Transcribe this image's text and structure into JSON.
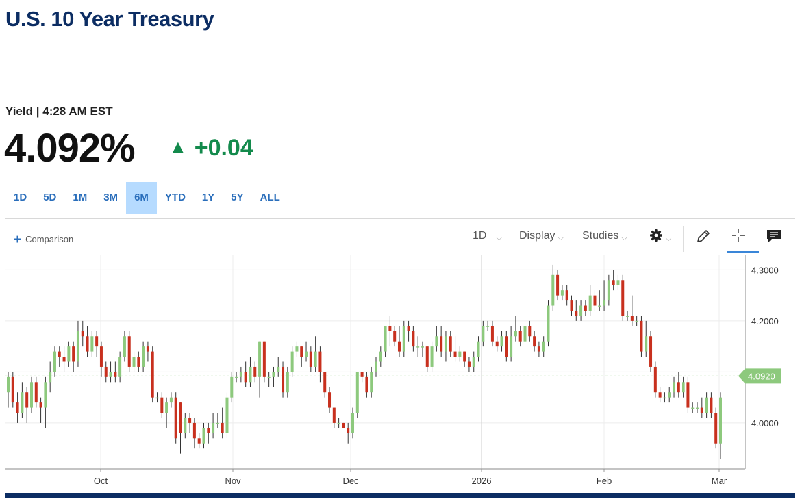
{
  "header": {
    "title": "U.S. 10 Year Treasury"
  },
  "quote": {
    "label": "Yield",
    "separator": "|",
    "time": "4:28 AM EST",
    "price": "4.092%",
    "change": "+0.04",
    "up_color": "#138a4c"
  },
  "range_tabs": {
    "items": [
      {
        "label": "1D"
      },
      {
        "label": "5D"
      },
      {
        "label": "1M"
      },
      {
        "label": "3M"
      },
      {
        "label": "6M",
        "active": true
      },
      {
        "label": "YTD"
      },
      {
        "label": "1Y"
      },
      {
        "label": "5Y"
      },
      {
        "label": "ALL"
      }
    ]
  },
  "toolbar": {
    "comparison_label": "Comparison",
    "interval_label": "1D",
    "display_label": "Display",
    "studies_label": "Studies",
    "icons": [
      "gear-icon",
      "pencil-icon",
      "crosshair-icon",
      "comment-icon"
    ]
  },
  "chart_data": {
    "type": "candlestick",
    "title": "",
    "xlabel": "",
    "ylabel": "",
    "x_ticks": [
      "Oct",
      "Nov",
      "Dec",
      "2026",
      "Feb",
      "Mar"
    ],
    "y_ticks": [
      "4.0000",
      "4.1000",
      "4.2000",
      "4.3000"
    ],
    "ylim": [
      3.91,
      4.33
    ],
    "current_value": "4.0920",
    "current_line": 4.092,
    "gridlines": true,
    "colors": {
      "up": "#8dc97d",
      "down": "#c8301e",
      "current": "#8dc97d"
    },
    "candles": [
      [
        4.06,
        4.09,
        4.03,
        4.1
      ],
      [
        4.09,
        4.04,
        4.03,
        4.1
      ],
      [
        4.04,
        4.02,
        4.0,
        4.06
      ],
      [
        4.02,
        4.06,
        4.01,
        4.08
      ],
      [
        4.06,
        4.03,
        4.0,
        4.07
      ],
      [
        4.03,
        4.08,
        4.02,
        4.09
      ],
      [
        4.08,
        4.04,
        4.03,
        4.09
      ],
      [
        4.04,
        4.03,
        4.0,
        4.05
      ],
      [
        4.03,
        4.08,
        3.99,
        4.09
      ],
      [
        4.08,
        4.1,
        4.06,
        4.12
      ],
      [
        4.1,
        4.14,
        4.09,
        4.15
      ],
      [
        4.14,
        4.13,
        4.11,
        4.15
      ],
      [
        4.13,
        4.12,
        4.1,
        4.15
      ],
      [
        4.12,
        4.15,
        4.11,
        4.16
      ],
      [
        4.15,
        4.12,
        4.1,
        4.16
      ],
      [
        4.12,
        4.18,
        4.11,
        4.2
      ],
      [
        4.18,
        4.17,
        4.15,
        4.2
      ],
      [
        4.17,
        4.14,
        4.13,
        4.19
      ],
      [
        4.14,
        4.17,
        4.13,
        4.18
      ],
      [
        4.17,
        4.15,
        4.13,
        4.18
      ],
      [
        4.15,
        4.11,
        4.09,
        4.16
      ],
      [
        4.11,
        4.09,
        4.08,
        4.12
      ],
      [
        4.09,
        4.1,
        4.08,
        4.12
      ],
      [
        4.1,
        4.09,
        4.08,
        4.12
      ],
      [
        4.09,
        4.13,
        4.08,
        4.14
      ],
      [
        4.13,
        4.17,
        4.12,
        4.18
      ],
      [
        4.17,
        4.11,
        4.1,
        4.18
      ],
      [
        4.11,
        4.13,
        4.1,
        4.14
      ],
      [
        4.13,
        4.11,
        4.1,
        4.14
      ],
      [
        4.11,
        4.15,
        4.1,
        4.16
      ],
      [
        4.15,
        4.14,
        4.12,
        4.16
      ],
      [
        4.14,
        4.05,
        4.04,
        4.15
      ],
      [
        4.05,
        4.05,
        4.04,
        4.06
      ],
      [
        4.05,
        4.02,
        4.01,
        4.06
      ],
      [
        4.02,
        4.04,
        3.99,
        4.05
      ],
      [
        4.04,
        4.05,
        4.03,
        4.06
      ],
      [
        4.05,
        3.97,
        3.96,
        4.06
      ],
      [
        4.04,
        3.98,
        3.94,
        4.04
      ],
      [
        3.98,
        4.01,
        3.97,
        4.02
      ],
      [
        4.01,
        4.0,
        3.98,
        4.02
      ],
      [
        4.0,
        3.97,
        3.95,
        4.01
      ],
      [
        3.97,
        3.96,
        3.95,
        3.98
      ],
      [
        3.96,
        3.99,
        3.95,
        4.0
      ],
      [
        3.99,
        3.98,
        3.96,
        4.0
      ],
      [
        3.98,
        4.0,
        3.97,
        4.02
      ],
      [
        4.0,
        4.0,
        3.99,
        4.02
      ],
      [
        4.0,
        3.98,
        3.97,
        4.03
      ],
      [
        3.98,
        4.05,
        3.97,
        4.06
      ],
      [
        4.05,
        4.09,
        4.04,
        4.1
      ],
      [
        4.09,
        4.09,
        4.08,
        4.1
      ],
      [
        4.09,
        4.1,
        4.08,
        4.11
      ],
      [
        4.1,
        4.08,
        4.07,
        4.12
      ],
      [
        4.08,
        4.11,
        4.07,
        4.13
      ],
      [
        4.11,
        4.09,
        4.08,
        4.12
      ],
      [
        4.09,
        4.16,
        4.05,
        4.16
      ],
      [
        4.16,
        4.09,
        4.08,
        4.16
      ],
      [
        4.09,
        4.09,
        4.07,
        4.1
      ],
      [
        4.09,
        4.1,
        4.07,
        4.11
      ],
      [
        4.1,
        4.11,
        4.09,
        4.13
      ],
      [
        4.11,
        4.06,
        4.05,
        4.12
      ],
      [
        4.06,
        4.1,
        4.05,
        4.11
      ],
      [
        4.1,
        4.14,
        4.09,
        4.15
      ],
      [
        4.14,
        4.15,
        4.13,
        4.16
      ],
      [
        4.15,
        4.13,
        4.11,
        4.15
      ],
      [
        4.13,
        4.14,
        4.12,
        4.16
      ],
      [
        4.14,
        4.11,
        4.1,
        4.15
      ],
      [
        4.11,
        4.14,
        4.1,
        4.17
      ],
      [
        4.14,
        4.1,
        4.08,
        4.15
      ],
      [
        4.1,
        4.06,
        4.05,
        4.1
      ],
      [
        4.06,
        4.03,
        4.02,
        4.07
      ],
      [
        4.03,
        4.0,
        3.99,
        4.03
      ],
      [
        4.0,
        4.0,
        3.99,
        4.01
      ],
      [
        4.0,
        3.99,
        3.99,
        4.0
      ],
      [
        3.99,
        3.98,
        3.96,
        4.0
      ],
      [
        3.98,
        4.02,
        3.97,
        4.03
      ],
      [
        4.02,
        4.1,
        4.01,
        4.1
      ],
      [
        4.1,
        4.09,
        4.08,
        4.1
      ],
      [
        4.09,
        4.06,
        4.05,
        4.1
      ],
      [
        4.06,
        4.1,
        4.05,
        4.11
      ],
      [
        4.1,
        4.12,
        4.09,
        4.13
      ],
      [
        4.12,
        4.14,
        4.11,
        4.15
      ],
      [
        4.14,
        4.19,
        4.13,
        4.19
      ],
      [
        4.19,
        4.18,
        4.15,
        4.21
      ],
      [
        4.18,
        4.16,
        4.15,
        4.19
      ],
      [
        4.16,
        4.14,
        4.13,
        4.19
      ],
      [
        4.14,
        4.19,
        4.13,
        4.2
      ],
      [
        4.19,
        4.18,
        4.16,
        4.2
      ],
      [
        4.18,
        4.15,
        4.14,
        4.19
      ],
      [
        4.15,
        4.15,
        4.13,
        4.17
      ],
      [
        4.15,
        4.15,
        4.13,
        4.16
      ],
      [
        4.15,
        4.11,
        4.1,
        4.15
      ],
      [
        4.11,
        4.15,
        4.1,
        4.16
      ],
      [
        4.15,
        4.17,
        4.14,
        4.19
      ],
      [
        4.17,
        4.14,
        4.13,
        4.19
      ],
      [
        4.14,
        4.17,
        4.12,
        4.18
      ],
      [
        4.17,
        4.14,
        4.13,
        4.18
      ],
      [
        4.14,
        4.13,
        4.12,
        4.17
      ],
      [
        4.13,
        4.14,
        4.12,
        4.15
      ],
      [
        4.14,
        4.12,
        4.11,
        4.14
      ],
      [
        4.12,
        4.11,
        4.1,
        4.13
      ],
      [
        4.11,
        4.13,
        4.1,
        4.14
      ],
      [
        4.13,
        4.16,
        4.12,
        4.17
      ],
      [
        4.16,
        4.19,
        4.15,
        4.2
      ],
      [
        4.19,
        4.19,
        4.18,
        4.2
      ],
      [
        4.19,
        4.16,
        4.15,
        4.2
      ],
      [
        4.16,
        4.15,
        4.14,
        4.17
      ],
      [
        4.15,
        4.17,
        4.14,
        4.18
      ],
      [
        4.17,
        4.13,
        4.12,
        4.18
      ],
      [
        4.13,
        4.17,
        4.12,
        4.19
      ],
      [
        4.17,
        4.18,
        4.16,
        4.21
      ],
      [
        4.18,
        4.16,
        4.15,
        4.19
      ],
      [
        4.16,
        4.19,
        4.15,
        4.21
      ],
      [
        4.19,
        4.17,
        4.16,
        4.2
      ],
      [
        4.17,
        4.15,
        4.14,
        4.18
      ],
      [
        4.15,
        4.14,
        4.13,
        4.16
      ],
      [
        4.14,
        4.16,
        4.13,
        4.17
      ],
      [
        4.16,
        4.23,
        4.15,
        4.24
      ],
      [
        4.23,
        4.29,
        4.22,
        4.31
      ],
      [
        4.29,
        4.25,
        4.24,
        4.3
      ],
      [
        4.25,
        4.26,
        4.24,
        4.27
      ],
      [
        4.26,
        4.24,
        4.23,
        4.27
      ],
      [
        4.24,
        4.22,
        4.21,
        4.25
      ],
      [
        4.22,
        4.21,
        4.2,
        4.24
      ],
      [
        4.21,
        4.23,
        4.2,
        4.24
      ],
      [
        4.23,
        4.22,
        4.21,
        4.24
      ],
      [
        4.22,
        4.25,
        4.21,
        4.27
      ],
      [
        4.25,
        4.23,
        4.22,
        4.26
      ],
      [
        4.23,
        4.23,
        4.22,
        4.26
      ],
      [
        4.23,
        4.24,
        4.22,
        4.28
      ],
      [
        4.24,
        4.28,
        4.23,
        4.29
      ],
      [
        4.28,
        4.27,
        4.26,
        4.3
      ],
      [
        4.27,
        4.28,
        4.26,
        4.29
      ],
      [
        4.28,
        4.21,
        4.2,
        4.29
      ],
      [
        4.21,
        4.21,
        4.2,
        4.22
      ],
      [
        4.21,
        4.2,
        4.19,
        4.25
      ],
      [
        4.2,
        4.2,
        4.19,
        4.21
      ],
      [
        4.2,
        4.14,
        4.13,
        4.21
      ],
      [
        4.14,
        4.17,
        4.13,
        4.2
      ],
      [
        4.17,
        4.11,
        4.1,
        4.18
      ],
      [
        4.11,
        4.06,
        4.05,
        4.12
      ],
      [
        4.06,
        4.05,
        4.04,
        4.07
      ],
      [
        4.05,
        4.05,
        4.04,
        4.06
      ],
      [
        4.05,
        4.06,
        4.04,
        4.07
      ],
      [
        4.06,
        4.08,
        4.05,
        4.09
      ],
      [
        4.08,
        4.06,
        4.05,
        4.1
      ],
      [
        4.06,
        4.08,
        4.05,
        4.09
      ],
      [
        4.08,
        4.03,
        4.02,
        4.09
      ],
      [
        4.03,
        4.03,
        4.02,
        4.04
      ],
      [
        4.03,
        4.03,
        4.02,
        4.04
      ],
      [
        4.03,
        4.02,
        4.01,
        4.05
      ],
      [
        4.02,
        4.05,
        4.01,
        4.06
      ],
      [
        4.05,
        4.02,
        4.01,
        4.06
      ],
      [
        4.02,
        3.96,
        3.95,
        4.03
      ],
      [
        3.96,
        4.05,
        3.93,
        4.06
      ]
    ]
  }
}
